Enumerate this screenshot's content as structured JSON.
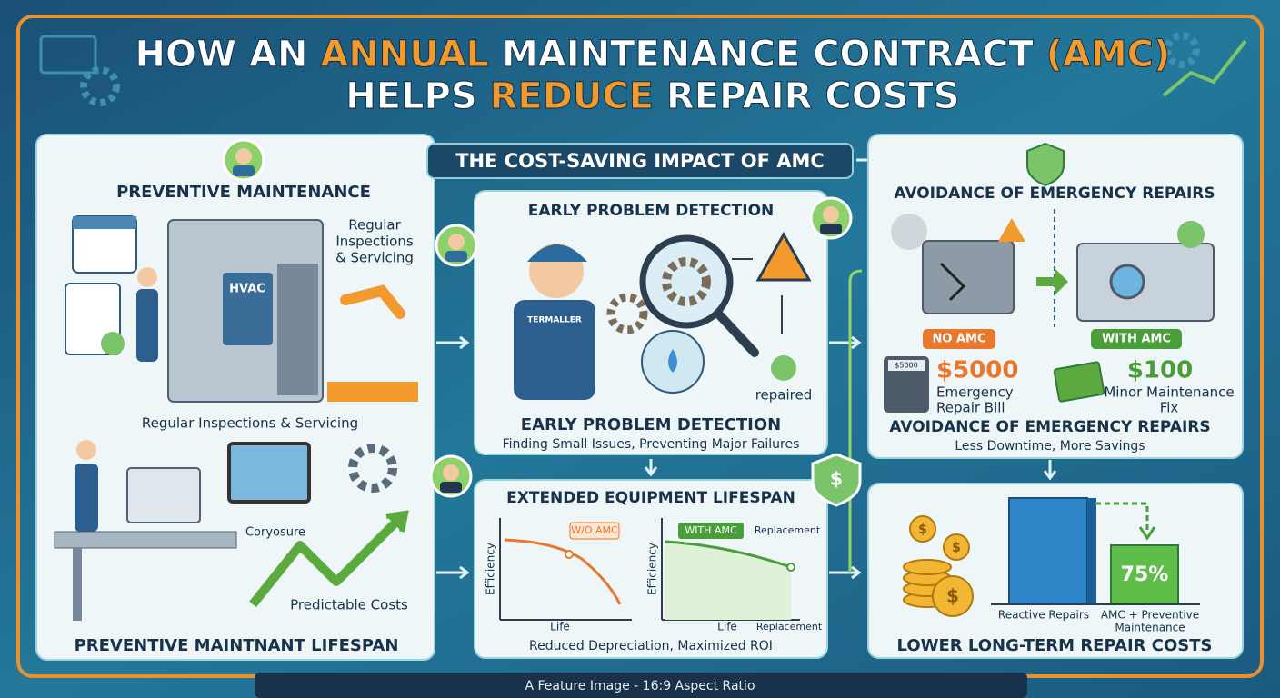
{
  "header": {
    "title_line1": [
      "HOW AN ",
      "ANNUAL",
      " MAINTENANCE CONTRACT ",
      "(AMC)"
    ],
    "title_line2": [
      "HELPS ",
      "REDUCE",
      " REPAIR COSTS"
    ]
  },
  "banner": "THE COST-SAVING IMPACT OF AMC",
  "panels": {
    "preventive": {
      "title": "PREVENTIVE MAINTENANCE",
      "callout": [
        "Regular",
        "Inspections",
        "& Servicing"
      ],
      "machine_label": "HVAC",
      "caption": "Regular Inspections & Servicing",
      "computer_label": "Coryosure",
      "trend_label": "Predictable Costs",
      "footer": "PREVENTIVE MAINTNANT LIFESPAN"
    },
    "detection": {
      "title": "EARLY PROBLEM DETECTION",
      "shirt_label": "TERMALLER",
      "status": "repaired",
      "caption": "EARLY PROBLEM DETECTION",
      "subcaption": "Finding Small Issues, Preventing Major Failures"
    },
    "lifespan": {
      "title": "EXTENDED EQUIPMENT LIFESPAN",
      "left_chart": {
        "tag": "W/O AMC",
        "y_label": "Efficiency",
        "x_label": "Life"
      },
      "right_chart": {
        "tag": "WITH AMC",
        "marker_label": "Replacement",
        "y_label": "Efficiency",
        "x_label": "Life",
        "end_label": "Replacement"
      },
      "caption": "Reduced Depreciation, Maximized ROI"
    },
    "emergency": {
      "title": "AVOIDANCE OF EMERGENCY REPAIRS",
      "no_amc": {
        "tag": "NO AMC",
        "display": "$5000",
        "amount": "$5000",
        "label": [
          "Emergency",
          "Repair Bill"
        ]
      },
      "with_amc": {
        "tag": "WITH AMC",
        "amount": "$100",
        "label": [
          "Minor Maintenance",
          "Fix"
        ]
      },
      "caption": "AVOIDANCE OF EMERGENCY REPAIRS",
      "subcaption": "Less Downtime, More Savings"
    },
    "lower": {
      "coin_symbol": "$",
      "bar_value": "75%",
      "reactive_label": "Reactive Repairs",
      "amc_label": [
        "AMC + Preventive",
        "Maintenance"
      ],
      "title": "LOWER LONG-TERM REPAIR COSTS"
    }
  },
  "footer": "A Feature Image - 16:9 Aspect Ratio"
}
